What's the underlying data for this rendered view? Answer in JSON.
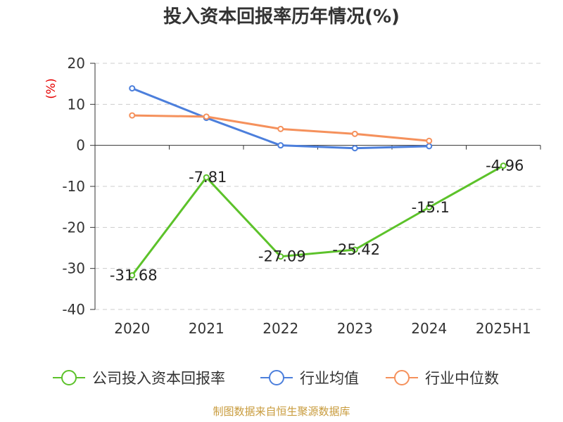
{
  "title": "投入资本回报率历年情况(%)",
  "source": "制图数据来自恒生聚源数据库",
  "colors": {
    "company": "#5cc22a",
    "industry_avg": "#4c7fdc",
    "industry_median": "#f5915c"
  },
  "chart_data": {
    "type": "line",
    "title": "投入资本回报率历年情况(%)",
    "ylabel": "(%)",
    "xlabel": "",
    "categories": [
      "2020",
      "2021",
      "2022",
      "2023",
      "2024",
      "2025H1"
    ],
    "ylim": [
      -40,
      20
    ],
    "yticks": [
      20,
      10,
      0,
      -10,
      -20,
      -30,
      -40
    ],
    "grid": true,
    "legend_position": "bottom",
    "series": [
      {
        "name": "公司投入资本回报率",
        "color": "#5cc22a",
        "values": [
          -31.68,
          -7.81,
          -27.09,
          -25.42,
          -15.1,
          -4.96
        ],
        "labels": [
          "-31.68",
          "-7.81",
          "-27.09",
          "-25.42",
          "-15.1",
          "-4.96"
        ]
      },
      {
        "name": "行业均值",
        "color": "#4c7fdc",
        "values": [
          13.9,
          6.7,
          0.0,
          -0.7,
          -0.2,
          null
        ]
      },
      {
        "name": "行业中位数",
        "color": "#f5915c",
        "values": [
          7.3,
          7.0,
          4.0,
          2.8,
          1.1,
          null
        ]
      }
    ]
  }
}
